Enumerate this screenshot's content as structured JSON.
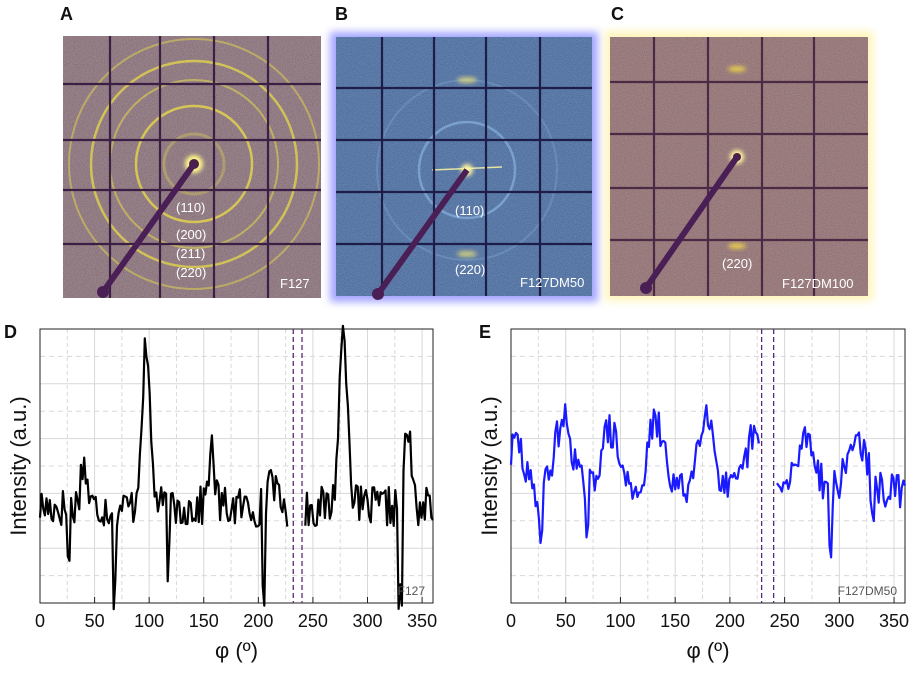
{
  "panels": {
    "A": {
      "letter": "A",
      "sample": "F127",
      "rings": [
        "(110)",
        "(200)",
        "(211)",
        "(220)"
      ],
      "tint": "#5a3f5f",
      "ring_color": "#e6d84a"
    },
    "B": {
      "letter": "B",
      "sample": "F127DM50",
      "rings": [
        "(110)",
        "(220)"
      ],
      "tint": "#2f4170",
      "ring_color": "#9fd0ff"
    },
    "C": {
      "letter": "C",
      "sample": "F127DM100",
      "rings": [
        "(220)"
      ],
      "tint": "#6a4a55",
      "ring_color": "#e8c84a"
    }
  },
  "chart_data": [
    {
      "panel": "D",
      "type": "line",
      "title": "",
      "xlabel": "φ (º)",
      "ylabel": "Intensity (a.u.)",
      "in_plot_label": "F127",
      "xlim": [
        0,
        360
      ],
      "ylim": [
        0,
        10
      ],
      "xticks": [
        0,
        50,
        100,
        150,
        200,
        250,
        300,
        350
      ],
      "series_color": "#000000",
      "gap": [
        228,
        242
      ],
      "dashed_lines": [
        232,
        240
      ],
      "peaks": [
        {
          "x": 40,
          "y": 1.6,
          "w": 3
        },
        {
          "x": 97,
          "y": 5.6,
          "w": 4
        },
        {
          "x": 157,
          "y": 2.0,
          "w": 3
        },
        {
          "x": 212,
          "y": 1.4,
          "w": 3
        },
        {
          "x": 278,
          "y": 6.4,
          "w": 4
        },
        {
          "x": 337,
          "y": 2.8,
          "w": 3
        }
      ],
      "dips": [
        {
          "x": 26,
          "y": -1.9
        },
        {
          "x": 68,
          "y": -3.2
        },
        {
          "x": 118,
          "y": -2.0
        },
        {
          "x": 205,
          "y": -3.5
        },
        {
          "x": 330,
          "y": -3.6
        }
      ],
      "baseline": 3.5,
      "noise": 0.75,
      "seed": 17
    },
    {
      "panel": "E",
      "type": "line",
      "title": "",
      "xlabel": "φ (º)",
      "ylabel": "Intensity (a.u.)",
      "in_plot_label": "F127DM50",
      "xlim": [
        0,
        360
      ],
      "ylim": [
        0,
        10
      ],
      "xticks": [
        0,
        50,
        100,
        150,
        200,
        250,
        300,
        350
      ],
      "series_color": "#1a1aff",
      "gap": [
        228,
        242
      ],
      "dashed_lines": [
        229,
        240
      ],
      "peaks": [
        {
          "x": 5,
          "y": 1.8,
          "w": 6
        },
        {
          "x": 48,
          "y": 2.6,
          "w": 8
        },
        {
          "x": 90,
          "y": 2.2,
          "w": 8
        },
        {
          "x": 132,
          "y": 2.4,
          "w": 8
        },
        {
          "x": 178,
          "y": 3.0,
          "w": 7
        },
        {
          "x": 222,
          "y": 2.0,
          "w": 7
        },
        {
          "x": 270,
          "y": 2.0,
          "w": 8
        },
        {
          "x": 316,
          "y": 2.0,
          "w": 8
        }
      ],
      "dips": [
        {
          "x": 27,
          "y": -1.4
        },
        {
          "x": 70,
          "y": -2.0
        },
        {
          "x": 120,
          "y": -1.2
        },
        {
          "x": 292,
          "y": -2.2
        },
        {
          "x": 330,
          "y": -1.5
        }
      ],
      "baseline": 4.1,
      "noise": 0.65,
      "seed": 29
    }
  ]
}
